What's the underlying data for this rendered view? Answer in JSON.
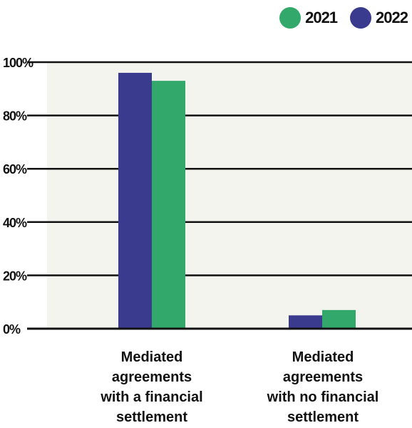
{
  "chart_data": {
    "type": "bar",
    "categories": [
      "Mediated\nagreements\nwith a financial\nsettlement",
      "Mediated\nagreements\nwith no financial\nsettlement"
    ],
    "series": [
      {
        "name": "2022",
        "values": [
          96,
          5
        ],
        "color": "#3a3a8e"
      },
      {
        "name": "2021",
        "values": [
          93,
          7
        ],
        "color": "#33a86b"
      }
    ],
    "ylim": [
      0,
      100
    ],
    "yticks": [
      "0%",
      "20%",
      "40%",
      "60%",
      "80%",
      "100%"
    ],
    "ytick_values": [
      0,
      20,
      40,
      60,
      80,
      100
    ],
    "legend": {
      "position": "top-right",
      "items": [
        {
          "label": "2021",
          "color": "#33a86b"
        },
        {
          "label": "2022",
          "color": "#3a3a8e"
        }
      ]
    },
    "grid": true,
    "plot_background": "#f3f4ee"
  }
}
